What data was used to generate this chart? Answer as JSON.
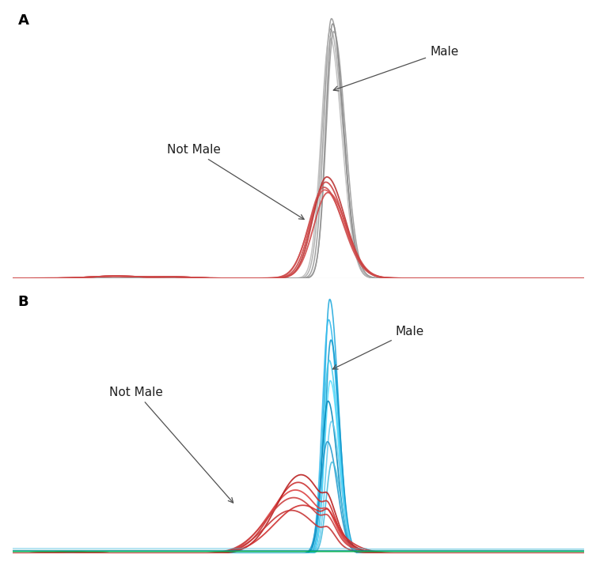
{
  "panel_A_label": "A",
  "panel_B_label": "B",
  "background_color": "#ffffff",
  "right_border_color": "#b8cdd8",
  "male_label": "Male",
  "not_male_label": "Not Male",
  "male_gray_colors": [
    "#989898",
    "#aaaaaa",
    "#888888",
    "#bcbcbc",
    "#999999"
  ],
  "not_male_red_colors_A": [
    "#cc4444",
    "#dd5555",
    "#bb3333",
    "#cc5050",
    "#d04848"
  ],
  "male_blue_colors_B": [
    "#22aadd",
    "#33bbee",
    "#1199cc",
    "#44ccee",
    "#55ddff",
    "#0088bb",
    "#66ccee",
    "#2299cc",
    "#44bbdd"
  ],
  "not_male_red_colors_B": [
    "#cc3333",
    "#dd4444",
    "#bb2222",
    "#cc4040",
    "#d03030",
    "#c83838"
  ],
  "green_line_color": "#00b050",
  "teal_line_color": "#009090",
  "light_blue_line_color": "#44bbdd",
  "font_size_label": 13,
  "font_size_annotation": 11
}
